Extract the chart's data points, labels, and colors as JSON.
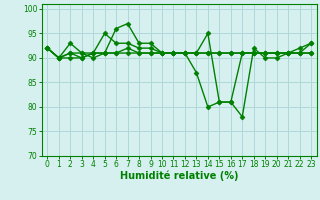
{
  "title": "",
  "xlabel": "Humidité relative (%)",
  "ylabel": "",
  "bg_color": "#d6f0f0",
  "line_color": "#008000",
  "grid_color": "#b0d8d8",
  "axis_color": "#008000",
  "tick_color": "#008000",
  "label_color": "#008000",
  "xlim": [
    -0.5,
    23.5
  ],
  "ylim": [
    70,
    101
  ],
  "yticks": [
    70,
    75,
    80,
    85,
    90,
    95,
    100
  ],
  "xticks": [
    0,
    1,
    2,
    3,
    4,
    5,
    6,
    7,
    8,
    9,
    10,
    11,
    12,
    13,
    14,
    15,
    16,
    17,
    18,
    19,
    20,
    21,
    22,
    23
  ],
  "series": [
    [
      92,
      90,
      93,
      91,
      90,
      91,
      96,
      97,
      93,
      93,
      91,
      91,
      91,
      87,
      80,
      81,
      81,
      78,
      92,
      90,
      90,
      91,
      91,
      93
    ],
    [
      92,
      90,
      91,
      91,
      91,
      95,
      93,
      93,
      92,
      92,
      91,
      91,
      91,
      91,
      91,
      91,
      91,
      91,
      91,
      91,
      91,
      91,
      92,
      93
    ],
    [
      92,
      90,
      90,
      90,
      91,
      91,
      91,
      92,
      91,
      91,
      91,
      91,
      91,
      91,
      91,
      91,
      91,
      91,
      91,
      91,
      91,
      91,
      91,
      91
    ],
    [
      92,
      90,
      91,
      90,
      91,
      91,
      91,
      91,
      91,
      91,
      91,
      91,
      91,
      91,
      95,
      81,
      81,
      91,
      91,
      91,
      91,
      91,
      91,
      91
    ]
  ],
  "marker": "D",
  "markersize": 2.5,
  "linewidth": 1.0,
  "xlabel_fontsize": 7,
  "tick_fontsize": 5.5
}
